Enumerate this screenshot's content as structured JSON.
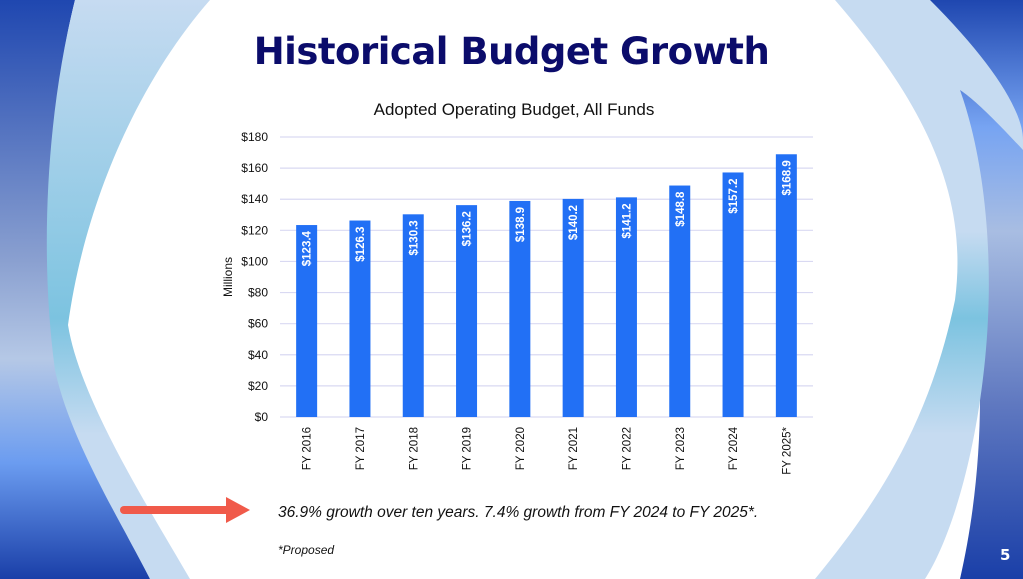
{
  "slide": {
    "title": "Historical Budget Growth",
    "caption": "36.9% growth over ten years. 7.4% growth from FY 2024 to FY 2025*.",
    "footnote": "*Proposed",
    "page_number": "5",
    "arrow_icon": "right-arrow",
    "colors": {
      "title": "#0b0c6b",
      "bar": "#2270f5",
      "gridline": "#d9d9f2",
      "arrow": "#f05a4a",
      "bg_dark_blue": "#1f47b0",
      "bg_light_blue": "#c6dbf1"
    }
  },
  "chart_data": {
    "type": "bar",
    "title": "Adopted Operating Budget, All Funds",
    "xlabel": "",
    "ylabel": "Millions",
    "categories": [
      "FY 2016",
      "FY 2017",
      "FY 2018",
      "FY 2019",
      "FY 2020",
      "FY 2021",
      "FY 2022",
      "FY 2023",
      "FY 2024",
      "FY 2025*"
    ],
    "values": [
      123.4,
      126.3,
      130.3,
      136.2,
      138.9,
      140.2,
      141.2,
      148.8,
      157.2,
      168.9
    ],
    "data_labels": [
      "$123.4",
      "$126.3",
      "$130.3",
      "$136.2",
      "$138.9",
      "$140.2",
      "$141.2",
      "$148.8",
      "$157.2",
      "$168.9"
    ],
    "ylim": [
      0,
      180
    ],
    "yticks": [
      0,
      20,
      40,
      60,
      80,
      100,
      120,
      140,
      160,
      180
    ],
    "ytick_labels": [
      "$0",
      "$20",
      "$40",
      "$60",
      "$80",
      "$100",
      "$120",
      "$140",
      "$160",
      "$180"
    ],
    "grid": true,
    "legend": "none"
  }
}
